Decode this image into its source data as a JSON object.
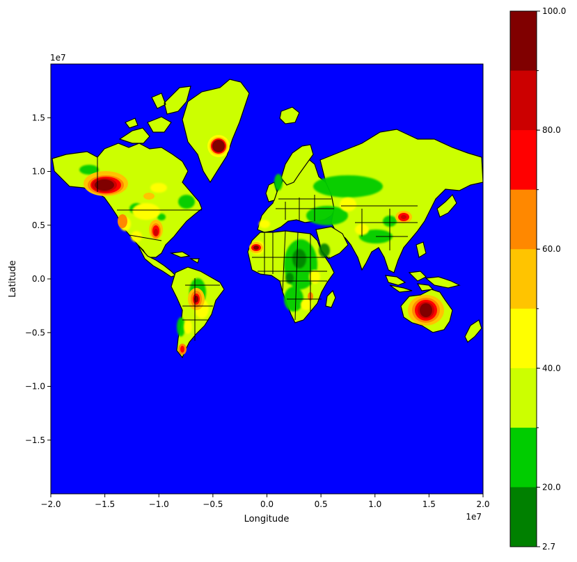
{
  "plot": {
    "xlabel": "Longitude",
    "ylabel": "Latitude",
    "x_exponent": "1e7",
    "y_exponent": "1e7",
    "xlim": [
      -2.0,
      2.0
    ],
    "ylim": [
      -2.0,
      2.0
    ],
    "x_ticks": [
      "-2.0",
      "-1.5",
      "-1.0",
      "-0.5",
      "0.0",
      "0.5",
      "1.0",
      "1.5",
      "2.0"
    ],
    "y_ticks": [
      "1.5",
      "1.0",
      "0.5",
      "0.0",
      "-0.5",
      "-1.0",
      "-1.5"
    ],
    "ocean_color": "#0000ff"
  },
  "colorbar": {
    "tick_labels": [
      "100.0",
      "80.0",
      "60.0",
      "40.0",
      "20.0",
      "2.7"
    ],
    "levels_top_to_bottom": [
      "#800000",
      "#cc0000",
      "#ff0000",
      "#ff8800",
      "#ffc400",
      "#ffff00",
      "#ccff00",
      "#00cc00",
      "#008000"
    ]
  },
  "map": {
    "land_base_color": "#ccff00",
    "border_color": "#000000"
  }
}
